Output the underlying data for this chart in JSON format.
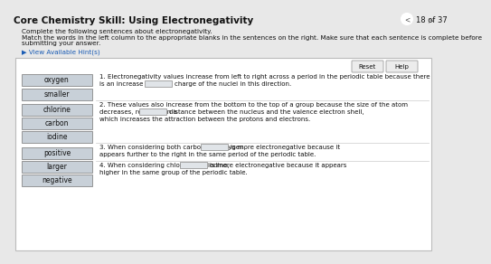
{
  "title": "Core Chemistry Skill: Using Electronegativity",
  "page_indicator": "18 of 37",
  "instruction1": "Complete the following sentences about electronegativity.",
  "instruction2": "Match the words in the left column to the appropriate blanks in the sentences on the right. Make sure that each sentence is complete before",
  "instruction3": "submitting your answer.",
  "hint_link": "▶ View Available Hint(s)",
  "bg_color": "#e8e8e8",
  "panel_bg": "#f5f5f5",
  "left_words": [
    "oxygen",
    "smaller",
    "chlorine",
    "carbon",
    "iodine",
    "positive",
    "larger",
    "negative"
  ],
  "left_box_color": "#c8d0d8",
  "text1_p1": "1. Electronegativity values increase from left to right across a period in the periodic table because there",
  "text1_p2": "is an increase in the",
  "text1_p3": "charge of the nuclei in this direction.",
  "text2_p1": "2. These values also increase from the bottom to the top of a group because the size of the atom",
  "text2_p2": "decreases, resulting in a",
  "text2_p3": "distance between the nucleus and the valence electron shell,",
  "text2_p4": "which increases the attraction between the protons and electrons.",
  "text3_p1": "3. When considering both carbon and oxygen,",
  "text3_p2": "is more electronegative because it",
  "text3_p3": "appears further to the right in the same period of the periodic table.",
  "text4_p1": "4. When considering chlorine and iodine,",
  "text4_p2": "is more electronegative because it appears",
  "text4_p3": "higher in the same group of the periodic table.",
  "font_color_dark": "#111111",
  "reset_btn": "Reset",
  "help_btn": "Help"
}
